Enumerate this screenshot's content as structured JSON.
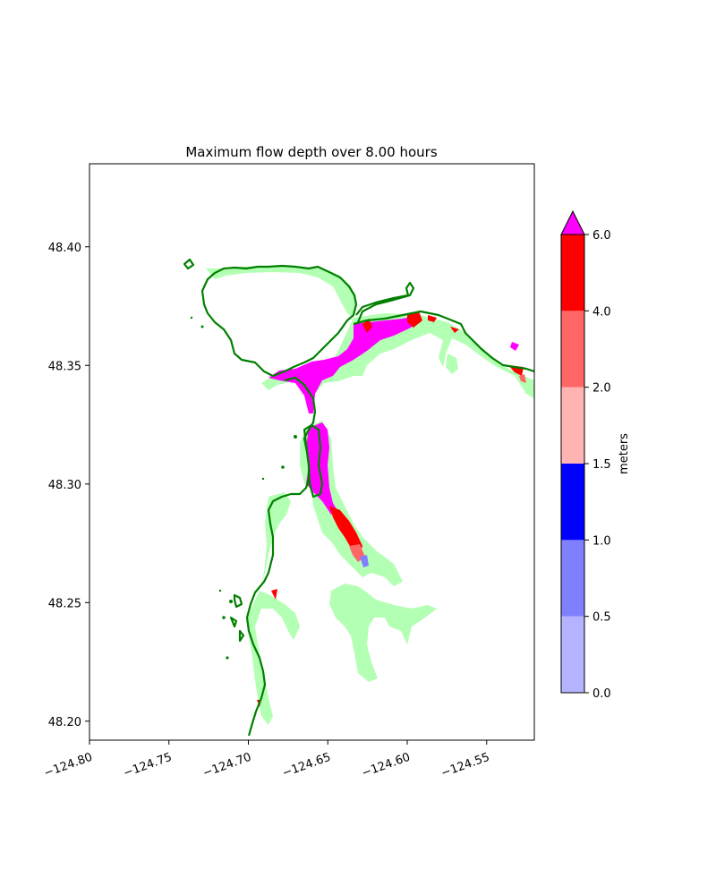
{
  "figure": {
    "title": "Maximum flow depth over 8.00 hours"
  },
  "map": {
    "lon_range": [
      -124.8,
      -124.52
    ],
    "lat_range": [
      48.192,
      48.435
    ],
    "x_ticks": [
      {
        "value": -124.8,
        "label": "−124.80"
      },
      {
        "value": -124.75,
        "label": "−124.75"
      },
      {
        "value": -124.7,
        "label": "−124.70"
      },
      {
        "value": -124.65,
        "label": "−124.65"
      },
      {
        "value": -124.6,
        "label": "−124.60"
      },
      {
        "value": -124.55,
        "label": "−124.55"
      }
    ],
    "y_ticks": [
      {
        "value": 48.2,
        "label": "48.20"
      },
      {
        "value": 48.25,
        "label": "48.25"
      },
      {
        "value": 48.3,
        "label": "48.30"
      },
      {
        "value": 48.35,
        "label": "48.35"
      },
      {
        "value": 48.4,
        "label": "48.40"
      }
    ],
    "layers": {
      "dry_land_inundation_color": "#b3ffb3",
      "shoreline_color": "#008000",
      "max_depth_color": "#ff00ff"
    }
  },
  "colorbar": {
    "label": "meters",
    "extend": "max",
    "extend_color": "#ff00ff",
    "bins": [
      {
        "from": 0.0,
        "to": 0.5,
        "color": "#b3b3ff"
      },
      {
        "from": 0.5,
        "to": 1.0,
        "color": "#8080ff"
      },
      {
        "from": 1.0,
        "to": 1.5,
        "color": "#0000ff"
      },
      {
        "from": 1.5,
        "to": 2.0,
        "color": "#ffb3b3"
      },
      {
        "from": 2.0,
        "to": 4.0,
        "color": "#ff6666"
      },
      {
        "from": 4.0,
        "to": 6.0,
        "color": "#ff0000"
      }
    ],
    "tick_labels": [
      "0.0",
      "0.5",
      "1.0",
      "1.5",
      "2.0",
      "4.0",
      "6.0"
    ]
  }
}
